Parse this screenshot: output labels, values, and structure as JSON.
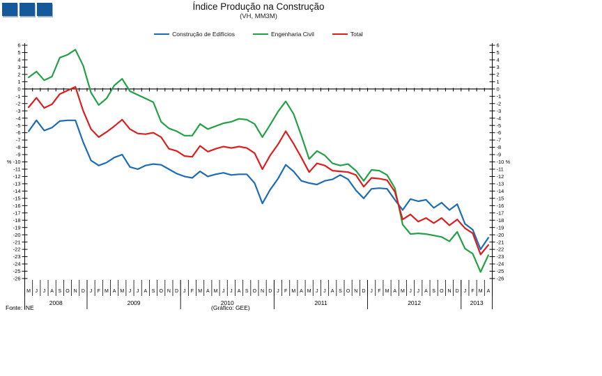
{
  "colors": {
    "logo_blue": "#15599B",
    "axis": "#000000",
    "background": "#FFFFFF"
  },
  "footer": {
    "source": "Fonte: INE",
    "graphic_credit": "(Gráfico: GEE)"
  },
  "chart_data": {
    "type": "line",
    "title": "Índice Produção na Construção",
    "subtitle": "(VH, MM3M)",
    "legend_position": "top",
    "grid": false,
    "y_axis": {
      "max": 6,
      "min": -26,
      "step": 1,
      "unit": "%",
      "unit_at": -10
    },
    "x_months": [
      "M",
      "J",
      "J",
      "A",
      "S",
      "O",
      "N",
      "D",
      "J",
      "F",
      "M",
      "A",
      "M",
      "J",
      "J",
      "A",
      "S",
      "O",
      "N",
      "D",
      "J",
      "F",
      "M",
      "A",
      "M",
      "J",
      "J",
      "A",
      "S",
      "O",
      "N",
      "D",
      "J",
      "F",
      "M",
      "A",
      "M",
      "J",
      "J",
      "A",
      "S",
      "O",
      "N",
      "D",
      "J",
      "F",
      "M",
      "A",
      "M",
      "J",
      "J",
      "A",
      "S",
      "O",
      "N",
      "D",
      "J",
      "F",
      "M",
      "A"
    ],
    "years": [
      {
        "label": "2008",
        "start": 0,
        "count": 8
      },
      {
        "label": "2009",
        "start": 8,
        "count": 12
      },
      {
        "label": "2010",
        "start": 20,
        "count": 12
      },
      {
        "label": "2011",
        "start": 32,
        "count": 12
      },
      {
        "label": "2012",
        "start": 44,
        "count": 12
      },
      {
        "label": "2013",
        "start": 56,
        "count": 4
      }
    ],
    "series": [
      {
        "name": "Construção de Edifícios",
        "color": "#1C6CB5",
        "values": [
          -5.8,
          -4.3,
          -5.7,
          -5.3,
          -4.4,
          -4.3,
          -4.3,
          -7.3,
          -9.8,
          -10.5,
          -10.1,
          -9.4,
          -9.0,
          -10.7,
          -11.0,
          -10.5,
          -10.3,
          -10.4,
          -11.0,
          -11.6,
          -12.0,
          -12.2,
          -11.3,
          -12.0,
          -11.7,
          -11.5,
          -11.8,
          -11.7,
          -11.7,
          -12.9,
          -15.7,
          -13.8,
          -12.3,
          -10.4,
          -11.3,
          -12.6,
          -12.9,
          -13.1,
          -12.6,
          -12.4,
          -11.8,
          -12.4,
          -13.9,
          -15.0,
          -13.7,
          -13.6,
          -13.7,
          -15.2,
          -16.6,
          -15.1,
          -15.4,
          -15.2,
          -16.3,
          -15.6,
          -16.6,
          -15.8,
          -18.5,
          -19.3,
          -22.0,
          -20.4
        ]
      },
      {
        "name": "Engenharia Civil",
        "color": "#21A144",
        "values": [
          1.6,
          2.4,
          1.2,
          1.7,
          4.3,
          4.7,
          5.4,
          3.2,
          -0.5,
          -2.2,
          -1.3,
          0.5,
          1.4,
          -0.3,
          -0.8,
          -1.3,
          -1.8,
          -4.5,
          -5.4,
          -5.8,
          -6.4,
          -6.4,
          -4.8,
          -5.5,
          -5.1,
          -4.7,
          -4.5,
          -4.1,
          -4.2,
          -4.8,
          -6.6,
          -4.9,
          -3.1,
          -1.7,
          -3.4,
          -6.4,
          -9.6,
          -8.5,
          -9.1,
          -10.2,
          -10.5,
          -10.3,
          -11.2,
          -12.6,
          -11.1,
          -11.2,
          -11.8,
          -13.6,
          -18.6,
          -19.9,
          -19.8,
          -19.9,
          -20.1,
          -20.3,
          -20.9,
          -19.6,
          -21.9,
          -22.6,
          -25.1,
          -22.8
        ]
      },
      {
        "name": "Total",
        "color": "#DE1D1D",
        "values": [
          -2.5,
          -1.2,
          -2.6,
          -2.1,
          -0.7,
          -0.2,
          0.3,
          -3.0,
          -5.5,
          -6.6,
          -5.9,
          -5.1,
          -4.2,
          -5.5,
          -6.1,
          -6.2,
          -6.0,
          -6.6,
          -8.2,
          -8.5,
          -9.2,
          -9.3,
          -7.8,
          -8.6,
          -8.2,
          -7.9,
          -8.1,
          -7.9,
          -8.1,
          -8.8,
          -11.0,
          -9.1,
          -7.6,
          -5.8,
          -7.5,
          -9.4,
          -11.4,
          -10.2,
          -10.5,
          -11.2,
          -11.3,
          -11.4,
          -11.8,
          -13.4,
          -12.2,
          -12.3,
          -12.5,
          -14.1,
          -17.9,
          -17.2,
          -18.2,
          -17.7,
          -18.4,
          -17.7,
          -18.7,
          -17.9,
          -19.1,
          -19.8,
          -22.7,
          -21.4
        ]
      }
    ]
  }
}
